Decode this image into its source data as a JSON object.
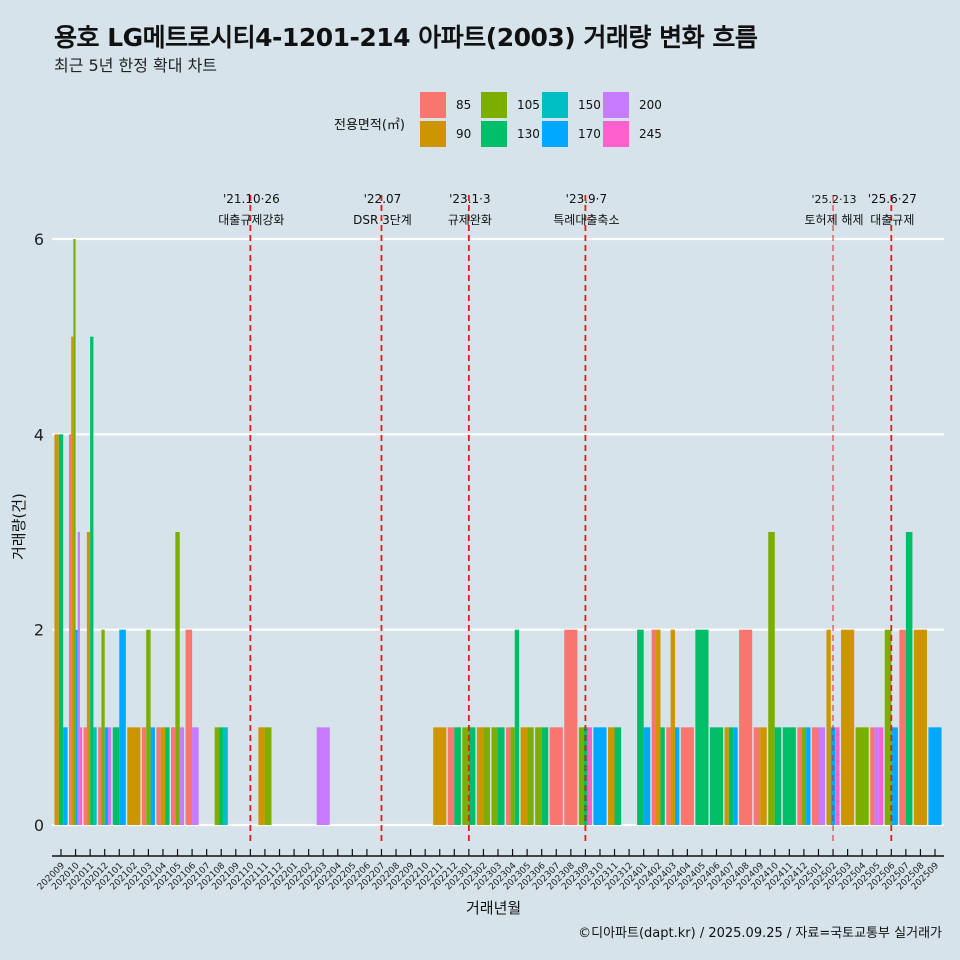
{
  "chart_data": {
    "type": "bar",
    "title": "용호 LG메트로시티4-1201-214 아파트(2003) 거래량 변화 흐름",
    "subtitle": "최근 5년 한정 확대 차트",
    "xlabel": "거래년월",
    "ylabel": "거래량(건)",
    "ylim": [
      0,
      6.2
    ],
    "yticks": [
      0,
      2,
      4,
      6
    ],
    "grid": true,
    "legend": {
      "title": "전용면적(㎡)",
      "placement": "top",
      "entries": [
        {
          "label": "85",
          "color": "#F8766D"
        },
        {
          "label": "90",
          "color": "#CD9600"
        },
        {
          "label": "105",
          "color": "#7CAE00"
        },
        {
          "label": "130",
          "color": "#00BE67"
        },
        {
          "label": "150",
          "color": "#00BFC4"
        },
        {
          "label": "170",
          "color": "#00A9FF"
        },
        {
          "label": "200",
          "color": "#C77CFF"
        },
        {
          "label": "245",
          "color": "#FF61CC"
        }
      ]
    },
    "categories": [
      "202009",
      "202010",
      "202011",
      "202012",
      "202101",
      "202102",
      "202103",
      "202104",
      "202105",
      "202106",
      "202107",
      "202108",
      "202109",
      "202110",
      "202111",
      "202112",
      "202201",
      "202202",
      "202203",
      "202204",
      "202205",
      "202206",
      "202207",
      "202208",
      "202209",
      "202210",
      "202211",
      "202212",
      "202301",
      "202302",
      "202303",
      "202304",
      "202305",
      "202306",
      "202307",
      "202308",
      "202309",
      "202310",
      "202311",
      "202312",
      "202401",
      "202402",
      "202403",
      "202404",
      "202405",
      "202406",
      "202407",
      "202408",
      "202409",
      "202410",
      "202411",
      "202412",
      "202501",
      "202502",
      "202503",
      "202504",
      "202505",
      "202506",
      "202507",
      "202508",
      "202509"
    ],
    "bars": {
      "202009": [
        [
          "90",
          4
        ],
        [
          "130",
          4
        ],
        [
          "170",
          1
        ]
      ],
      "202010": [
        [
          "85",
          4
        ],
        [
          "90",
          5
        ],
        [
          "105",
          6
        ],
        [
          "170",
          2
        ],
        [
          "200",
          3
        ],
        [
          "245",
          1
        ]
      ],
      "202011": [
        [
          "85",
          1
        ],
        [
          "90",
          3
        ],
        [
          "130",
          5
        ],
        [
          "150",
          1
        ]
      ],
      "202012": [
        [
          "85",
          1
        ],
        [
          "105",
          2
        ],
        [
          "170",
          1
        ],
        [
          "200",
          1
        ]
      ],
      "202101": [
        [
          "130",
          1
        ],
        [
          "170",
          2
        ]
      ],
      "202102": [
        [
          "90",
          1
        ]
      ],
      "202103": [
        [
          "85",
          1
        ],
        [
          "105",
          2
        ],
        [
          "170",
          1
        ]
      ],
      "202104": [
        [
          "85",
          1
        ],
        [
          "90",
          1
        ],
        [
          "130",
          1
        ]
      ],
      "202105": [
        [
          "85",
          1
        ],
        [
          "105",
          3
        ],
        [
          "200",
          1
        ]
      ],
      "202106": [
        [
          "85",
          2
        ],
        [
          "200",
          1
        ]
      ],
      "202108": [
        [
          "105",
          1
        ],
        [
          "130",
          1
        ],
        [
          "150",
          1
        ]
      ],
      "202111": [
        [
          "90",
          1
        ],
        [
          "105",
          1
        ]
      ],
      "202203": [
        [
          "200",
          1
        ]
      ],
      "202211": [
        [
          "90",
          1
        ]
      ],
      "202212": [
        [
          "85",
          1
        ],
        [
          "130",
          1
        ]
      ],
      "202301": [
        [
          "105",
          1
        ],
        [
          "130",
          1
        ]
      ],
      "202302": [
        [
          "90",
          1
        ],
        [
          "105",
          1
        ]
      ],
      "202303": [
        [
          "105",
          1
        ],
        [
          "130",
          1
        ]
      ],
      "202304": [
        [
          "85",
          1
        ],
        [
          "105",
          1
        ],
        [
          "130",
          2
        ]
      ],
      "202305": [
        [
          "90",
          1
        ],
        [
          "105",
          1
        ]
      ],
      "202306": [
        [
          "105",
          1
        ],
        [
          "130",
          1
        ]
      ],
      "202307": [
        [
          "85",
          1
        ]
      ],
      "202308": [
        [
          "85",
          2
        ]
      ],
      "202309": [
        [
          "105",
          1
        ],
        [
          "130",
          1
        ],
        [
          "245",
          1
        ]
      ],
      "202310": [
        [
          "170",
          1
        ]
      ],
      "202311": [
        [
          "90",
          1
        ],
        [
          "130",
          1
        ]
      ],
      "202401": [
        [
          "130",
          2
        ],
        [
          "170",
          1
        ]
      ],
      "202402": [
        [
          "85",
          2
        ],
        [
          "90",
          2
        ],
        [
          "130",
          1
        ]
      ],
      "202403": [
        [
          "85",
          1
        ],
        [
          "90",
          2
        ],
        [
          "170",
          1
        ]
      ],
      "202404": [
        [
          "85",
          1
        ]
      ],
      "202405": [
        [
          "130",
          2
        ]
      ],
      "202406": [
        [
          "130",
          1
        ]
      ],
      "202407": [
        [
          "90",
          1
        ],
        [
          "130",
          1
        ],
        [
          "170",
          1
        ]
      ],
      "202408": [
        [
          "85",
          2
        ]
      ],
      "202409": [
        [
          "85",
          1
        ],
        [
          "90",
          1
        ]
      ],
      "202410": [
        [
          "105",
          3
        ],
        [
          "130",
          1
        ]
      ],
      "202411": [
        [
          "130",
          1
        ]
      ],
      "202412": [
        [
          "85",
          1
        ],
        [
          "105",
          1
        ],
        [
          "170",
          1
        ]
      ],
      "202501": [
        [
          "85",
          1
        ],
        [
          "200",
          1
        ]
      ],
      "202502": [
        [
          "90",
          2
        ],
        [
          "170",
          1
        ],
        [
          "245",
          1
        ]
      ],
      "202503": [
        [
          "90",
          2
        ]
      ],
      "202504": [
        [
          "105",
          1
        ]
      ],
      "202505": [
        [
          "85",
          1
        ],
        [
          "200",
          1
        ],
        [
          "245",
          1
        ]
      ],
      "202506": [
        [
          "105",
          2
        ],
        [
          "170",
          1
        ]
      ],
      "202507": [
        [
          "85",
          2
        ],
        [
          "130",
          3
        ]
      ],
      "202508": [
        [
          "90",
          2
        ]
      ],
      "202509": [
        [
          "170",
          1
        ]
      ]
    },
    "annotations": [
      {
        "at": "202110",
        "date": "'21.10·26",
        "label": "대출규제강화",
        "style": "dashed"
      },
      {
        "at": "202207",
        "date": "'22.07",
        "label": "DSR 3단계",
        "style": "dashed"
      },
      {
        "at": "202301",
        "date": "'23.1·3",
        "label": "규제완화",
        "style": "dashed"
      },
      {
        "at": "202309",
        "date": "'23.9·7",
        "label": "특례대출축소",
        "style": "dashed"
      },
      {
        "at": "202502",
        "date": "'25.2·13",
        "label": "토허제 해제",
        "style": "dashed-light"
      },
      {
        "at": "202506",
        "date": "'25.6·27",
        "label": "대출규제",
        "style": "dashed"
      }
    ],
    "annotation_color": "#E41A1C"
  },
  "caption": "©디아파트(dapt.kr) / 2025.09.25 / 자료=국토교통부 실거래가"
}
